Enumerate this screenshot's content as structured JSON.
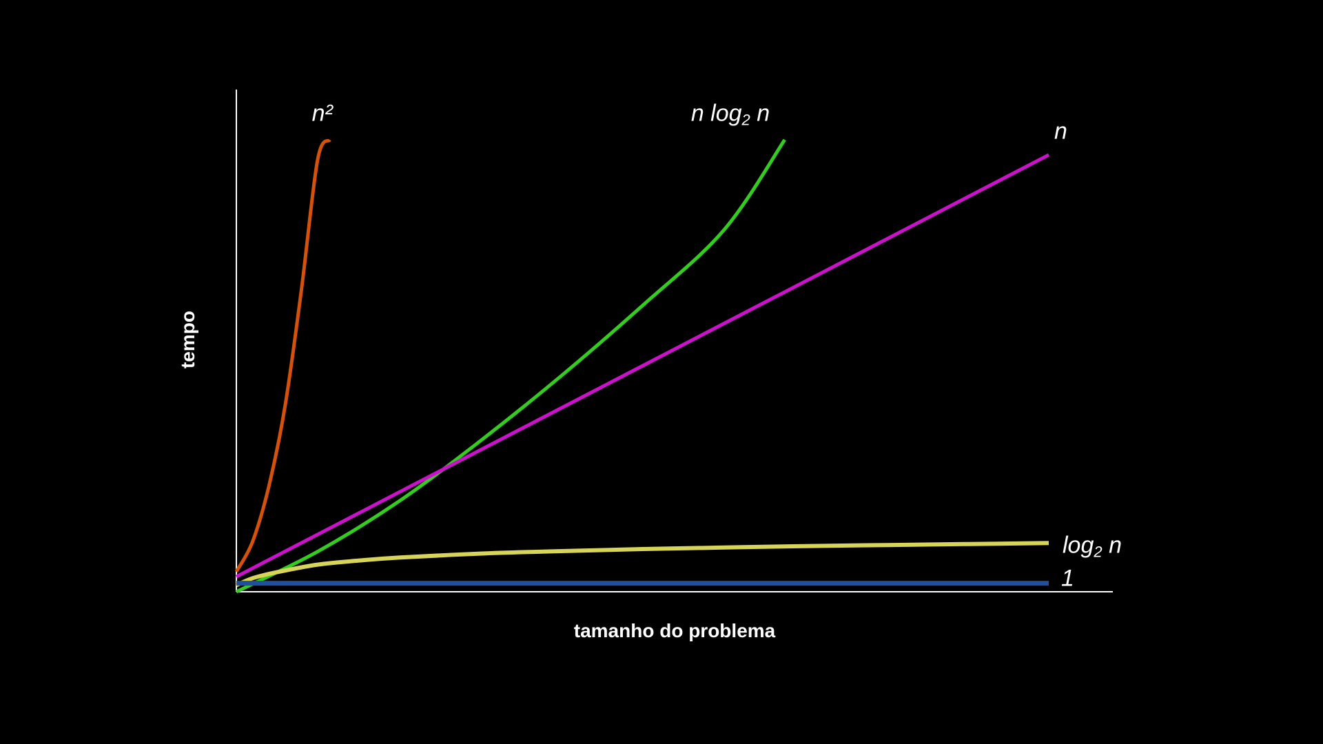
{
  "chart_data": {
    "type": "line",
    "xlabel": "tamanho do problema",
    "ylabel": "tempo",
    "grid": false,
    "legend": "inline labels at line ends",
    "background_color": "#000000",
    "axis_color": "#ffffff",
    "xlim": [
      0,
      100
    ],
    "ylim": [
      0,
      100
    ],
    "series": [
      {
        "name": "n²",
        "label_parts": [
          "n²"
        ],
        "color": "#d4520a",
        "x": [
          0,
          2,
          4,
          6,
          8,
          10,
          11.5
        ],
        "y": [
          4,
          10,
          21,
          37,
          60,
          86,
          90
        ]
      },
      {
        "name": "n log₂ n",
        "label_parts": [
          "n log",
          "2",
          " n"
        ],
        "color": "#33cc1f",
        "x": [
          0,
          10,
          20,
          30,
          40,
          50,
          60,
          67.5
        ],
        "y": [
          0,
          8,
          18,
          30,
          43,
          57,
          72,
          90
        ]
      },
      {
        "name": "n",
        "label_parts": [
          "n"
        ],
        "color": "#cc11cc",
        "x": [
          0,
          25,
          50,
          75,
          100
        ],
        "y": [
          3,
          24,
          45,
          66,
          87
        ]
      },
      {
        "name": "log₂ n",
        "label_parts": [
          "log",
          "2",
          " n"
        ],
        "color": "#d8d45a",
        "x": [
          0,
          2,
          5,
          10,
          15,
          20,
          30,
          40,
          50,
          60,
          70,
          80,
          90,
          100
        ],
        "y": [
          1.3,
          2.7,
          3.9,
          5.4,
          6.2,
          6.8,
          7.6,
          8.1,
          8.5,
          8.8,
          9.1,
          9.3,
          9.5,
          9.7
        ]
      },
      {
        "name": "1",
        "label_parts": [
          "1"
        ],
        "color": "#1f4f9e",
        "x": [
          0,
          100
        ],
        "y": [
          1.7,
          1.7
        ]
      }
    ]
  }
}
